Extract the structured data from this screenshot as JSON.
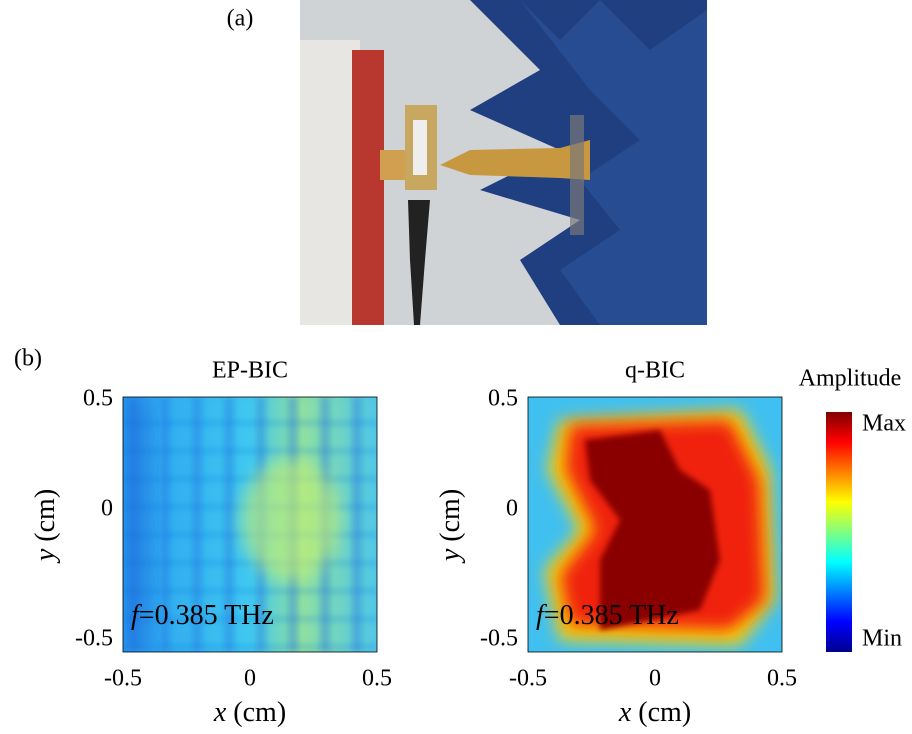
{
  "figure": {
    "label_a": "(a)",
    "label_b": "(b)",
    "panels": [
      {
        "title": "EP-BIC",
        "xticks": [
          "-0.5",
          "0",
          "0.5"
        ],
        "yticks": [
          "0.5",
          "0",
          "-0.5"
        ],
        "xlabel": {
          "symbol": "x",
          "unit": " (cm)"
        },
        "ylabel": {
          "symbol": "y",
          "unit": " (cm)"
        },
        "annotation": {
          "symbol": "f",
          "text": "=0.385 THz"
        }
      },
      {
        "title": "q-BIC",
        "xticks": [
          "-0.5",
          "0",
          "0.5"
        ],
        "yticks": [
          "0.5",
          "0",
          "-0.5"
        ],
        "xlabel": {
          "symbol": "x",
          "unit": " (cm)"
        },
        "ylabel": {
          "symbol": "y",
          "unit": " (cm)"
        },
        "annotation": {
          "symbol": "f",
          "text": "=0.385 THz"
        }
      }
    ],
    "colorbar": {
      "title": "Amplitude",
      "max": "Max",
      "min": "Min"
    }
  }
}
